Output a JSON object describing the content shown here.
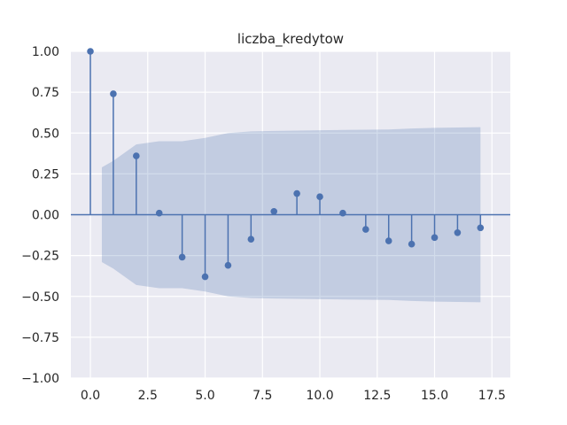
{
  "chart_data": {
    "type": "stem",
    "title": "liczba_kredytow",
    "xlabel": "",
    "ylabel": "",
    "xlim": [
      -0.85,
      18.3
    ],
    "ylim": [
      -1.0,
      1.0
    ],
    "xticks": [
      0.0,
      2.5,
      5.0,
      7.5,
      10.0,
      12.5,
      15.0,
      17.5
    ],
    "xtick_labels": [
      "0.0",
      "2.5",
      "5.0",
      "7.5",
      "10.0",
      "12.5",
      "15.0",
      "17.5"
    ],
    "yticks": [
      -1.0,
      -0.75,
      -0.5,
      -0.25,
      0.0,
      0.25,
      0.5,
      0.75,
      1.0
    ],
    "ytick_labels": [
      "−1.00",
      "−0.75",
      "−0.50",
      "−0.25",
      "0.00",
      "0.25",
      "0.50",
      "0.75",
      "1.00"
    ],
    "grid": true,
    "background": "#eaeaf2",
    "series": [
      {
        "x": [
          0,
          1,
          2,
          3,
          4,
          5,
          6,
          7,
          8,
          9,
          10,
          11,
          12,
          13,
          14,
          15,
          16,
          17
        ],
        "values": [
          1.0,
          0.74,
          0.36,
          0.01,
          -0.26,
          -0.38,
          -0.31,
          -0.15,
          0.02,
          0.13,
          0.11,
          0.01,
          -0.09,
          -0.16,
          -0.18,
          -0.14,
          -0.11,
          -0.08
        ],
        "color": "#4c72b0"
      }
    ],
    "confidence_band": {
      "x": [
        0.5,
        1,
        2,
        3,
        4,
        5,
        6,
        7,
        8,
        9,
        10,
        11,
        12,
        13,
        14,
        15,
        16,
        17
      ],
      "upper": [
        0.29,
        0.33,
        0.43,
        0.45,
        0.45,
        0.47,
        0.5,
        0.51,
        0.513,
        0.515,
        0.517,
        0.519,
        0.52,
        0.522,
        0.528,
        0.532,
        0.534,
        0.536
      ],
      "color": "#4c72b0",
      "opacity": 0.25
    }
  }
}
